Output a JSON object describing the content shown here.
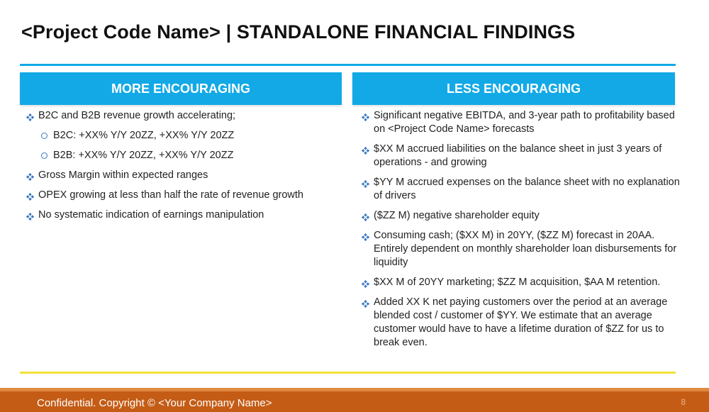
{
  "slide": {
    "title": "<Project Code Name> | STANDALONE FINANCIAL FINDINGS",
    "accent_color": "#12a9e6",
    "bullet_color": "#3a78c2",
    "divider_color": "#f2e23a",
    "footer_color": "#c45c16"
  },
  "left_column": {
    "header": "MORE ENCOURAGING",
    "bullets": [
      {
        "level": 1,
        "icon": "diamond-bullet-icon",
        "text": "B2C and B2B revenue growth accelerating;"
      },
      {
        "level": 2,
        "icon": "circle-bullet-icon",
        "text": "B2C: +XX% Y/Y 20ZZ, +XX% Y/Y 20ZZ"
      },
      {
        "level": 2,
        "icon": "circle-bullet-icon",
        "text": "B2B: +XX% Y/Y 20ZZ, +XX% Y/Y 20ZZ"
      },
      {
        "level": 1,
        "icon": "diamond-bullet-icon",
        "text": "Gross Margin within expected ranges"
      },
      {
        "level": 1,
        "icon": "diamond-bullet-icon",
        "text": "OPEX growing at less than half the rate of revenue growth"
      },
      {
        "level": 1,
        "icon": "diamond-bullet-icon",
        "text": "No systematic indication of earnings manipulation"
      }
    ]
  },
  "right_column": {
    "header": "LESS ENCOURAGING",
    "bullets": [
      {
        "level": 1,
        "icon": "diamond-bullet-icon",
        "text": "Significant negative EBITDA, and 3-year path to profitability based on <Project Code Name> forecasts"
      },
      {
        "level": 1,
        "icon": "diamond-bullet-icon",
        "text": "$XX M accrued liabilities on the balance sheet in just 3 years of operations - and growing"
      },
      {
        "level": 1,
        "icon": "diamond-bullet-icon",
        "text": "$YY M accrued expenses on the balance sheet with no explanation of drivers"
      },
      {
        "level": 1,
        "icon": "diamond-bullet-icon",
        "text": "($ZZ M) negative shareholder equity"
      },
      {
        "level": 1,
        "icon": "diamond-bullet-icon",
        "text": "Consuming cash; ($XX M) in 20YY, ($ZZ M) forecast in 20AA. Entirely dependent on monthly shareholder loan disbursements for liquidity"
      },
      {
        "level": 1,
        "icon": "diamond-bullet-icon",
        "text": "$XX M of 20YY marketing; $ZZ M acquisition, $AA M retention."
      },
      {
        "level": 1,
        "icon": "diamond-bullet-icon",
        "text": "Added XX K net paying customers over the period at an average blended cost / customer of $YY. We estimate that an average customer would have to have a lifetime duration of $ZZ for us to break even."
      }
    ]
  },
  "footer": {
    "text": "Confidential. Copyright © <Your Company Name>",
    "page_number": "8"
  }
}
